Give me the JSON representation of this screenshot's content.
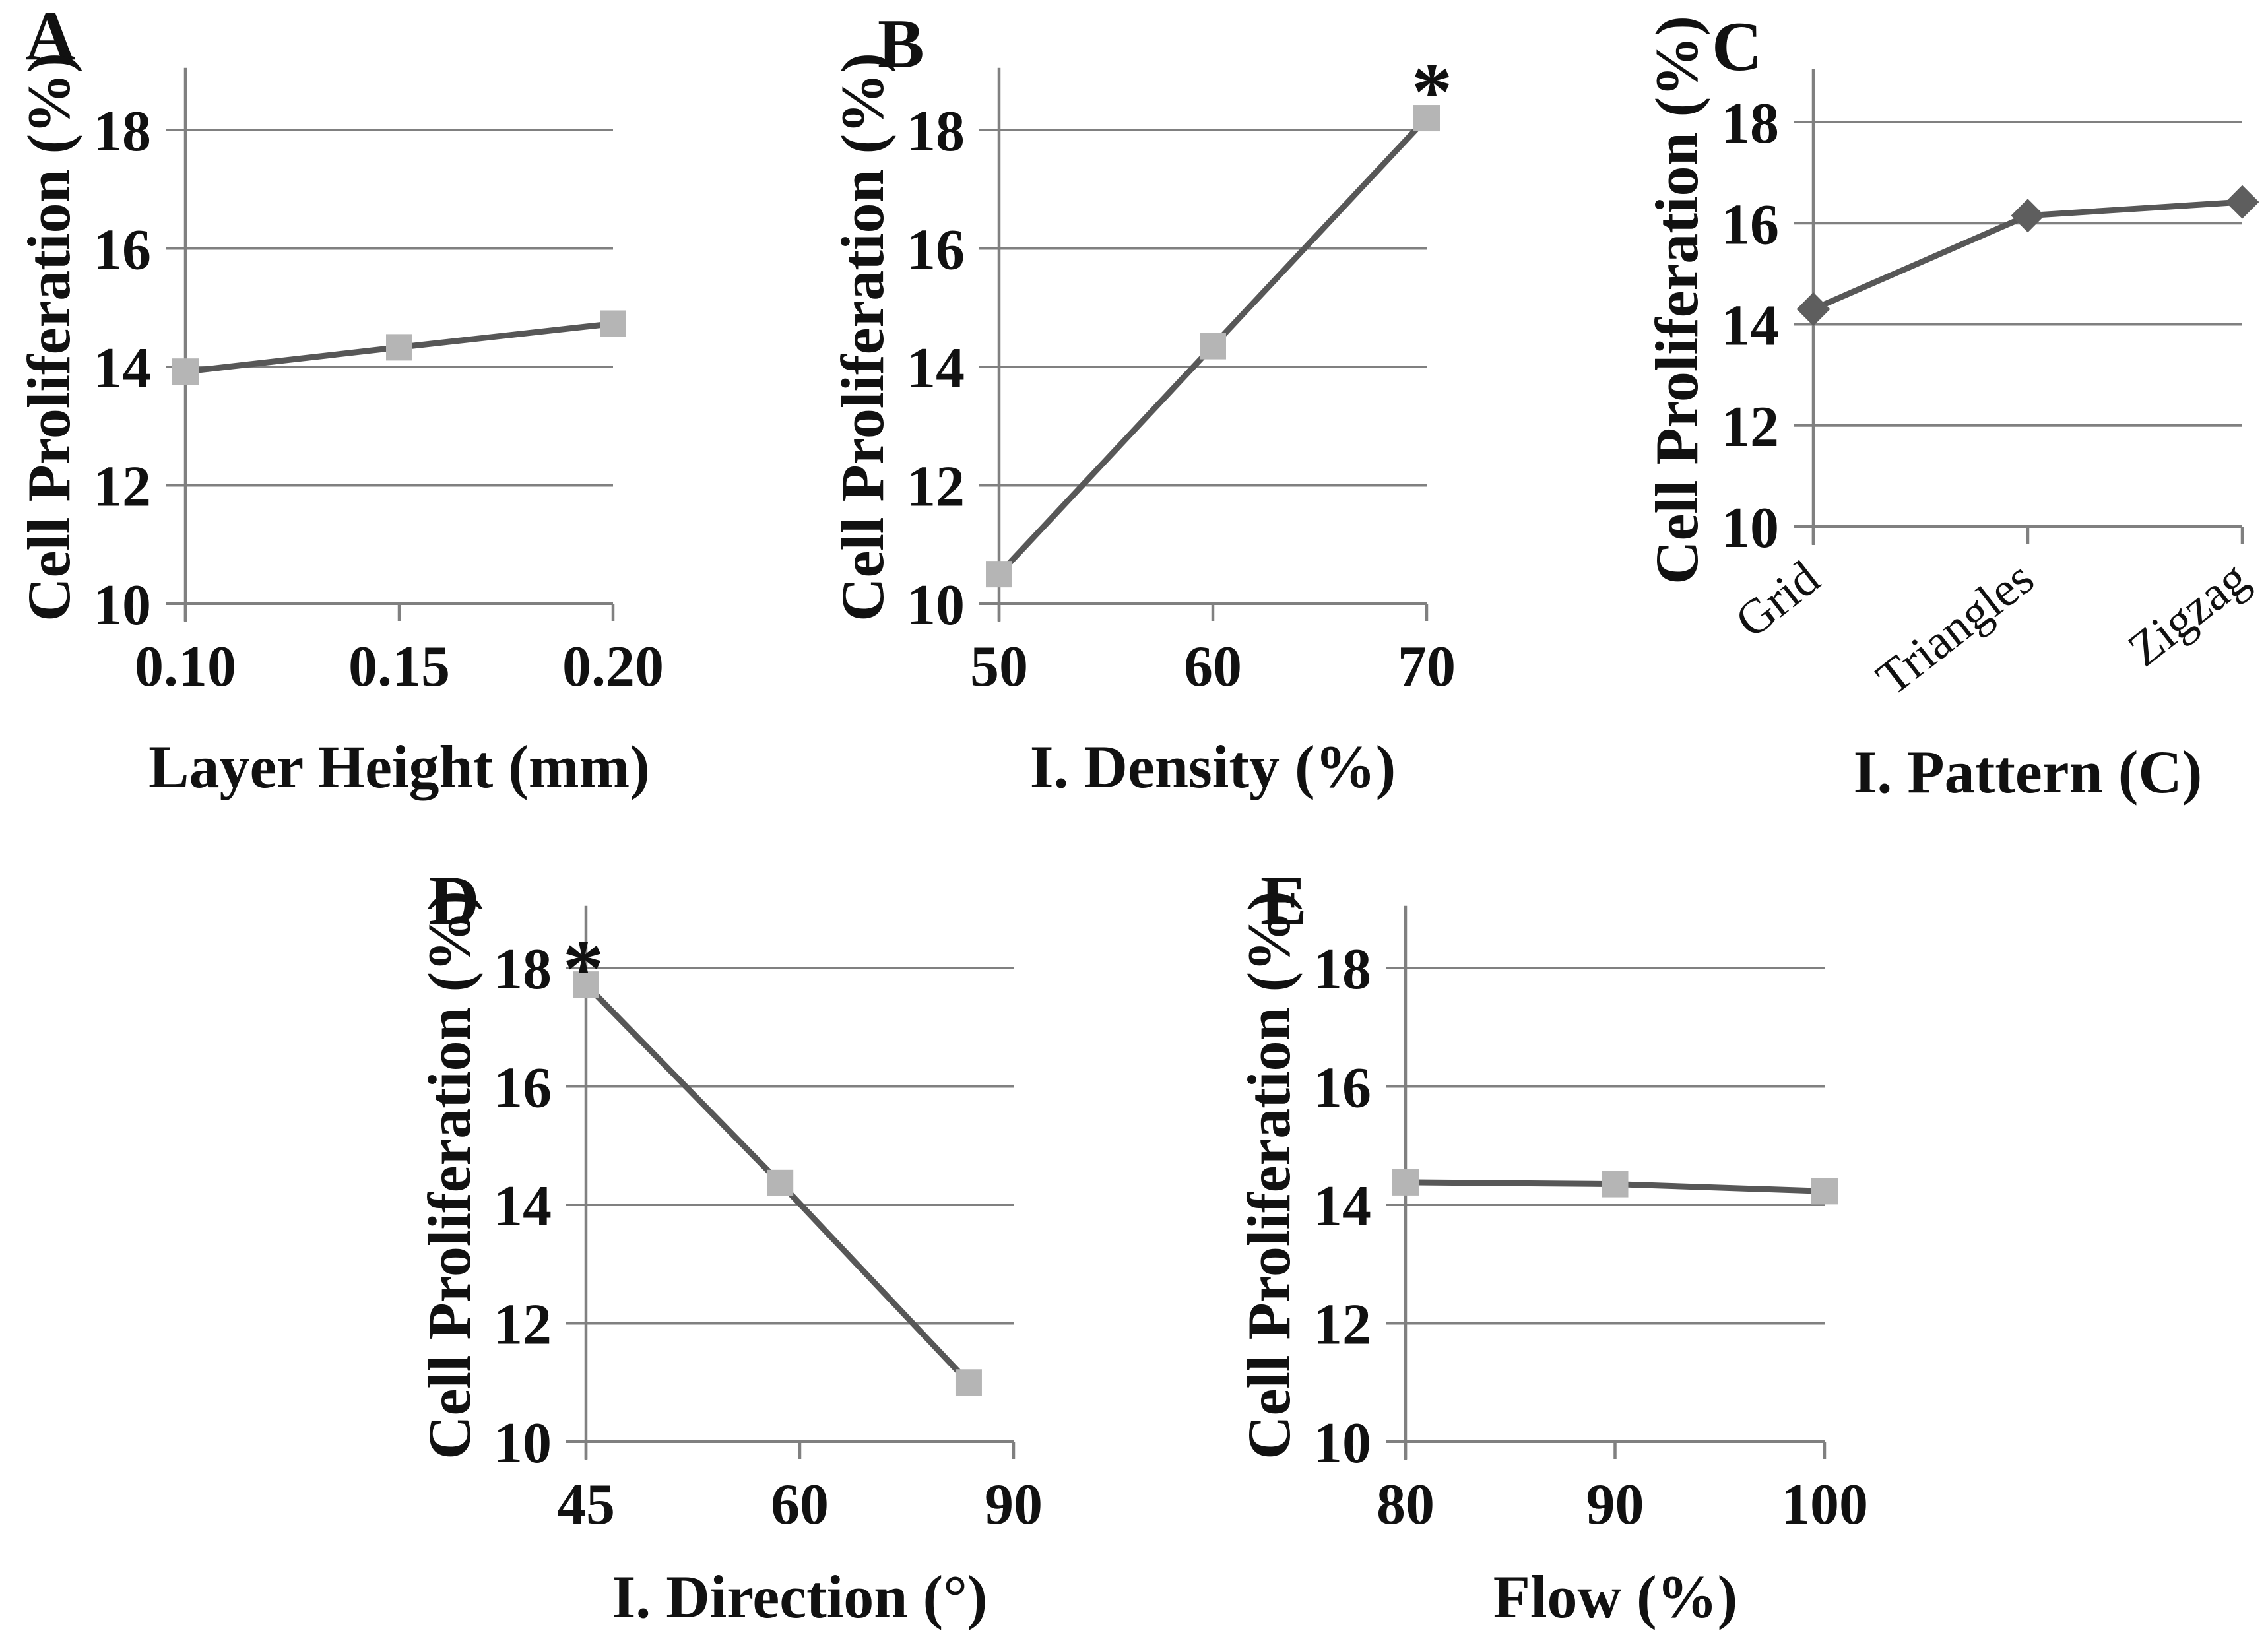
{
  "figure": {
    "description_text": "Five line charts of cell proliferation versus printing parameters",
    "y_axis_title": "Cell Proliferation (%)",
    "significance_symbol": "*"
  },
  "colors": {
    "line": "#575757",
    "square_marker": "#b5b5b5",
    "diamond_marker": "#5e5e5e",
    "grid": "#808080",
    "axis": "#808080",
    "text": "#111111"
  },
  "chart_data": [
    {
      "type": "line",
      "panel_label": "A",
      "ylabel": "Cell Proliferation (%)",
      "xlabel": "Layer Height (mm)",
      "categories": [
        "0.10",
        "0.15",
        "0.20"
      ],
      "values": [
        13.92,
        14.33,
        14.73
      ],
      "yticks": [
        10,
        12,
        14,
        16,
        18
      ],
      "ylim": [
        10,
        19
      ],
      "marker": "square",
      "rotated_xticks": false,
      "significance_index": null,
      "legend": null,
      "grid": true
    },
    {
      "type": "line",
      "panel_label": "B",
      "ylabel": "Cell Proliferation (%)",
      "xlabel": "I. Density (%)",
      "categories": [
        "50",
        "60",
        "70"
      ],
      "values": [
        10.5,
        14.35,
        18.2
      ],
      "yticks": [
        10,
        12,
        14,
        16,
        18
      ],
      "ylim": [
        10,
        19
      ],
      "marker": "square",
      "rotated_xticks": false,
      "significance_index": 2,
      "legend": null,
      "grid": true
    },
    {
      "type": "line",
      "panel_label": "C",
      "ylabel": "Cell Proliferation (%)",
      "xlabel": "I. Pattern (C)",
      "categories": [
        "Grid",
        "Triangles",
        "Zigzag"
      ],
      "values": [
        14.3,
        16.15,
        16.42
      ],
      "yticks": [
        10,
        12,
        14,
        16,
        18
      ],
      "ylim": [
        10,
        19
      ],
      "marker": "diamond",
      "rotated_xticks": true,
      "significance_index": null,
      "legend": null,
      "grid": true
    },
    {
      "type": "line",
      "panel_label": "D",
      "ylabel": "Cell Proliferation (%)",
      "xlabel": "I. Direction (°)",
      "categories": [
        "45",
        "60",
        "90"
      ],
      "values": [
        17.72,
        14.37,
        11.0
      ],
      "yticks": [
        10,
        12,
        14,
        16,
        18
      ],
      "ylim": [
        10,
        19
      ],
      "marker": "square",
      "rotated_xticks": false,
      "significance_index": 0,
      "legend": null,
      "grid": true
    },
    {
      "type": "line",
      "panel_label": "E",
      "ylabel": "Cell Proliferation (%)",
      "xlabel": "Flow (%)",
      "categories": [
        "80",
        "90",
        "100"
      ],
      "values": [
        14.38,
        14.35,
        14.23
      ],
      "yticks": [
        10,
        12,
        14,
        16,
        18
      ],
      "ylim": [
        10,
        19
      ],
      "marker": "square",
      "rotated_xticks": false,
      "significance_index": null,
      "legend": null,
      "grid": true
    }
  ]
}
